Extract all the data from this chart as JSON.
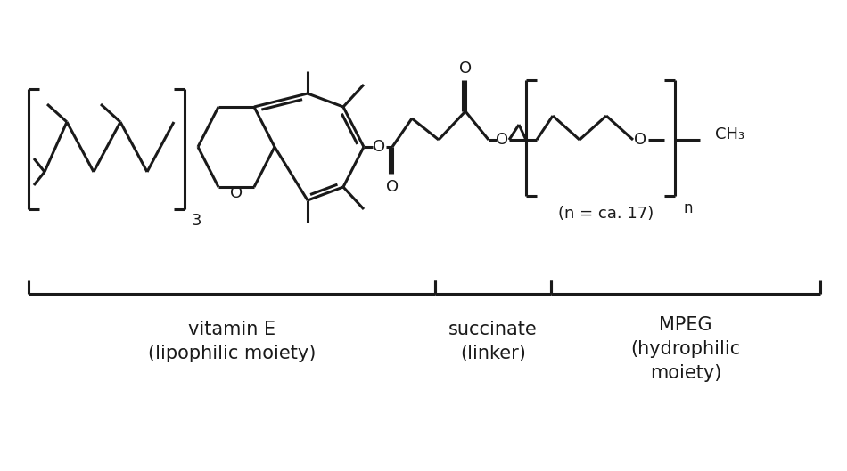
{
  "bg_color": "#ffffff",
  "line_color": "#1a1a1a",
  "line_width": 2.2,
  "font_family": "Arial",
  "label1": "vitamin E",
  "label1b": "(lipophilic moiety)",
  "label2": "succinate",
  "label2b": "(linker)",
  "label3": "MPEG",
  "label3b": "(hydrophilic",
  "label3c": "moiety)",
  "note": "(n = ca. 17)",
  "label_n": "n",
  "label_CH3": "CH₃",
  "label_O_chroman": "O",
  "label_O_ester1": "O",
  "label_O_carbonyl1": "O",
  "label_O_carbonyl2": "O",
  "label_O_ester2": "O",
  "label_O_peg": "O",
  "label_3": "3"
}
